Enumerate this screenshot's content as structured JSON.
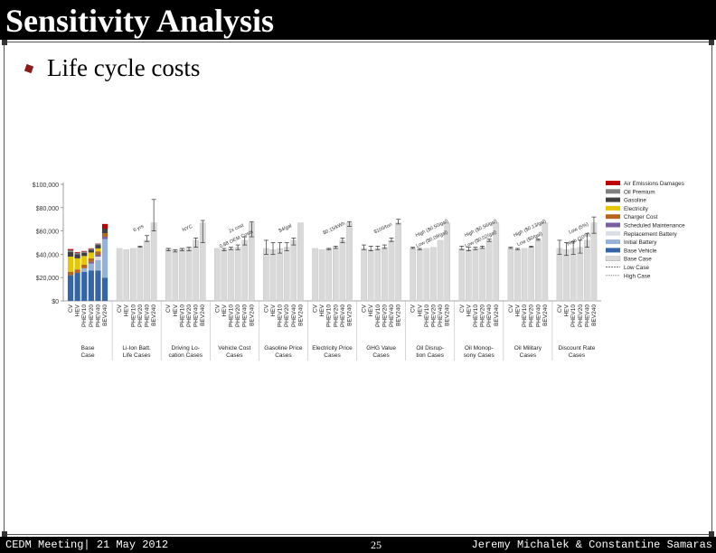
{
  "slide": {
    "title": "Sensitivity Analysis",
    "bullet": "Life cycle costs"
  },
  "footer": {
    "left": "CEDM Meeting| 21 May 2012",
    "page": "25",
    "right": "Jeremy Michalek & Constantine Samaras"
  },
  "colors": {
    "bullet": "#8b1a1a",
    "title_bar": "#000000"
  },
  "chart_data": {
    "type": "bar",
    "stacked": true,
    "title": "",
    "xlabel": "",
    "ylabel": "",
    "ylim": [
      0,
      100000
    ],
    "y_ticks": [
      "$0",
      "$20,000",
      "$40,000",
      "$60,000",
      "$80,000",
      "$100,000"
    ],
    "vehicles": [
      "CV",
      "HEV",
      "PHEV10",
      "PHEV20",
      "PHEV40",
      "BEV240"
    ],
    "groups": [
      "Base Case",
      "Li-Ion Batt. Life Cases",
      "Driving Lo- cation Cases",
      "Vehicle Cost Cases",
      "Gasoline Price Cases",
      "Electricity Price Cases",
      "GHG Value Cases",
      "Oil Disrup- tion Cases",
      "Oil Monop- sony Cases",
      "Oil Military Cases",
      "Discount Rate Cases"
    ],
    "legend": [
      {
        "name": "Air Emissions Damages",
        "color": "#c00000"
      },
      {
        "name": "Oil Premium",
        "color": "#7f7f7f"
      },
      {
        "name": "Gasoline",
        "color": "#404040"
      },
      {
        "name": "Electricity",
        "color": "#e6c700"
      },
      {
        "name": "Charger Cost",
        "color": "#b5651d"
      },
      {
        "name": "Scheduled Maintenance",
        "color": "#7a5fa0"
      },
      {
        "name": "Replacement Battery",
        "color": "#d9dde6"
      },
      {
        "name": "Initial Battery",
        "color": "#95b3d7"
      },
      {
        "name": "Base Vehicle",
        "color": "#3465a4"
      },
      {
        "name": "Base Case",
        "color": "#d9d9d9"
      },
      {
        "name": "Low Case",
        "color": "#444444"
      },
      {
        "name": "High Case",
        "color": "#666666"
      }
    ],
    "base_case_stacks": [
      {
        "vehicle": "CV",
        "values": [
          22000,
          0,
          0,
          0,
          3000,
          13000,
          4000,
          1500,
          1000
        ]
      },
      {
        "vehicle": "HEV",
        "values": [
          24000,
          0,
          0,
          0,
          3000,
          9500,
          3500,
          1300,
          600
        ]
      },
      {
        "vehicle": "PHEV10",
        "values": [
          25000,
          3000,
          0,
          0,
          3000,
          7500,
          2800,
          1000,
          500
        ]
      },
      {
        "vehicle": "PHEV20",
        "values": [
          26000,
          6000,
          0,
          1500,
          3000,
          5000,
          2500,
          700,
          400
        ]
      },
      {
        "vehicle": "PHEV40",
        "values": [
          26000,
          9000,
          3000,
          1500,
          3000,
          2500,
          3000,
          900,
          300
        ]
      },
      {
        "vehicle": "BEV240",
        "values": [
          20000,
          33000,
          0,
          2000,
          3000,
          0,
          4000,
          0,
          4000
        ]
      }
    ],
    "sensitivity_totals": [
      {
        "group": "Li-Ion Batt. Life Cases",
        "base": [
          45000,
          44000,
          45000,
          46000,
          52000,
          67000
        ],
        "low": [
          45000,
          44000,
          45000,
          46000,
          51000,
          60000
        ],
        "high": [
          45000,
          44000,
          45000,
          47000,
          56000,
          87000
        ]
      },
      {
        "group": "Driving Lo- cation Cases",
        "base": [
          45000,
          44000,
          45000,
          46000,
          52000,
          67000
        ],
        "low": [
          43000,
          42000,
          43000,
          43000,
          46000,
          50000
        ],
        "high": [
          45000,
          44000,
          45000,
          46000,
          54000,
          69000
        ]
      },
      {
        "group": "Vehicle Cost Cases",
        "base": [
          45000,
          44000,
          45000,
          46000,
          52000,
          67000
        ],
        "low": [
          45000,
          43000,
          44000,
          44000,
          48000,
          55000
        ],
        "high": [
          45000,
          45000,
          46000,
          48000,
          55000,
          68000
        ]
      },
      {
        "group": "Gasoline Price Cases",
        "base": [
          45000,
          44000,
          45000,
          46000,
          52000,
          67000
        ],
        "low": [
          40000,
          40000,
          41000,
          43000,
          48000,
          67000
        ],
        "high": [
          52000,
          50000,
          50000,
          50000,
          54000,
          67000
        ]
      },
      {
        "group": "Electricity Price Cases",
        "base": [
          45000,
          44000,
          45000,
          46000,
          52000,
          67000
        ],
        "low": [
          45000,
          44000,
          44000,
          45000,
          50000,
          64000
        ],
        "high": [
          45000,
          44000,
          45000,
          47000,
          54000,
          68000
        ]
      },
      {
        "group": "GHG Value Cases",
        "base": [
          45000,
          44000,
          45000,
          46000,
          52000,
          67000
        ],
        "low": [
          44000,
          43000,
          44000,
          45000,
          51000,
          66000
        ],
        "high": [
          48000,
          47000,
          47000,
          48000,
          54000,
          70000
        ]
      },
      {
        "group": "Oil Disrup- tion Cases",
        "base": [
          45000,
          44000,
          45000,
          46000,
          52000,
          67000
        ],
        "low": [
          45000,
          44000,
          45000,
          46000,
          52000,
          67000
        ],
        "high": [
          46000,
          45000,
          45000,
          46000,
          52000,
          67000
        ]
      },
      {
        "group": "Oil Monop- sony Cases",
        "base": [
          45000,
          44000,
          45000,
          46000,
          52000,
          67000
        ],
        "low": [
          44000,
          43000,
          44000,
          45000,
          51000,
          67000
        ],
        "high": [
          47000,
          46000,
          46000,
          47000,
          53000,
          67000
        ]
      },
      {
        "group": "Oil Military Cases",
        "base": [
          45000,
          44000,
          45000,
          46000,
          52000,
          67000
        ],
        "low": [
          45000,
          44000,
          45000,
          46000,
          52000,
          67000
        ],
        "high": [
          46000,
          45000,
          45000,
          47000,
          53000,
          67000
        ]
      },
      {
        "group": "Discount Rate Cases",
        "base": [
          45000,
          44000,
          45000,
          46000,
          52000,
          67000
        ],
        "low": [
          40000,
          39000,
          40000,
          41000,
          46000,
          58000
        ],
        "high": [
          52000,
          50000,
          51000,
          52000,
          58000,
          72000
        ]
      }
    ],
    "annotations": [
      {
        "group": "Li-Ion Batt. Life Cases",
        "text": "6 yrs"
      },
      {
        "group": "Driving Lo- cation Cases",
        "text": "NYC"
      },
      {
        "group": "Vehicle Cost Cases",
        "text": "2x cost"
      },
      {
        "group": "Vehicle Cost Cases",
        "text": "0.88 OEM Costs"
      },
      {
        "group": "Gasoline Price Cases",
        "text": "$4/gal"
      },
      {
        "group": "Electricity Price Cases",
        "text": "$0.15/kWh"
      },
      {
        "group": "GHG Value Cases",
        "text": "$100/ton"
      },
      {
        "group": "Oil Disrup- tion Cases",
        "text": "High ($0.50/gal)"
      },
      {
        "group": "Oil Disrup- tion Cases",
        "text": "Low ($0.09/gal)"
      },
      {
        "group": "Oil Monop- sony Cases",
        "text": "High ($0.56/gal)"
      },
      {
        "group": "Oil Monop- sony Cases",
        "text": "Low ($0.02/gal)"
      },
      {
        "group": "Oil Military Cases",
        "text": "High ($0.13/gal)"
      },
      {
        "group": "Oil Military Cases",
        "text": "Low ($0/gal)"
      },
      {
        "group": "Discount Rate Cases",
        "text": "Low (5%)"
      },
      {
        "group": "Discount Rate Cases",
        "text": "High (10%)"
      }
    ]
  }
}
